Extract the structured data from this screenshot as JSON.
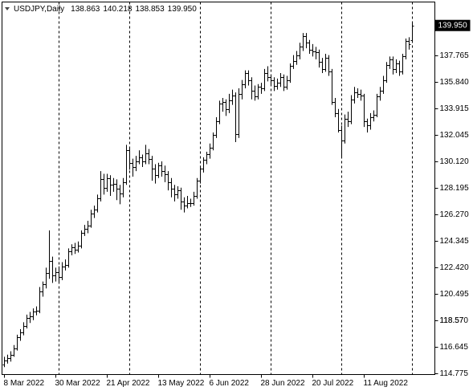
{
  "chart_data": {
    "type": "ohlc",
    "info": {
      "symbol": "USDJPY,Daily",
      "open": "138.863",
      "high": "140.218",
      "low": "138.853",
      "close": "139.950"
    },
    "current_price": {
      "value": 139.95,
      "label": "139.950"
    },
    "ylim": [
      114.66,
      141.65
    ],
    "yticks": [
      114.775,
      116.645,
      118.57,
      {
        "value": 118.57,
        "label": "118.570"
      },
      120.495,
      {
        "value": 122.42,
        "label": "122.420"
      },
      124.345,
      {
        "value": 126.27,
        "label": "126.270"
      },
      128.195,
      {
        "value": 130.12,
        "label": "130.120"
      },
      132.045,
      133.915,
      {
        "value": 135.84,
        "label": "135.840"
      },
      137.765
    ],
    "color": "#000000",
    "categories": [
      "8 Mar 2022",
      null,
      null,
      null,
      null,
      null,
      null,
      null,
      null,
      null,
      null,
      null,
      null,
      null,
      null,
      null,
      "30 Mar 2022",
      null,
      null,
      null,
      null,
      null,
      null,
      null,
      null,
      null,
      null,
      null,
      null,
      null,
      null,
      null,
      "21 Apr 2022",
      null,
      null,
      null,
      null,
      null,
      null,
      null,
      null,
      null,
      null,
      null,
      null,
      null,
      null,
      null,
      "13 May 2022",
      null,
      null,
      null,
      null,
      null,
      null,
      null,
      null,
      null,
      null,
      null,
      null,
      null,
      null,
      null,
      "6 Jun 2022",
      null,
      null,
      null,
      null,
      null,
      null,
      null,
      null,
      null,
      null,
      null,
      null,
      null,
      null,
      null,
      "28 Jun 2022",
      null,
      null,
      null,
      null,
      null,
      null,
      null,
      null,
      null,
      null,
      null,
      null,
      null,
      null,
      null,
      "20 Jul 2022",
      null,
      null,
      null,
      null,
      null,
      null,
      null,
      null,
      null,
      null,
      null,
      null,
      null,
      null,
      null,
      "11 Aug 2022",
      null,
      null,
      null,
      null,
      null,
      null,
      null,
      null,
      null,
      null,
      null,
      null,
      null,
      null,
      null
    ],
    "ohlc": [
      [
        115.4,
        115.95,
        115.2,
        115.7
      ],
      [
        115.7,
        116.1,
        115.45,
        115.85
      ],
      [
        115.85,
        116.35,
        115.6,
        116.1
      ],
      [
        116.1,
        116.8,
        115.95,
        116.55
      ],
      [
        116.55,
        117.55,
        116.4,
        117.35
      ],
      [
        117.35,
        117.95,
        117.1,
        117.7
      ],
      [
        117.7,
        118.45,
        117.5,
        118.2
      ],
      [
        118.2,
        119.0,
        118.0,
        118.75
      ],
      [
        118.75,
        119.2,
        118.4,
        118.9
      ],
      [
        118.9,
        119.45,
        118.6,
        119.25
      ],
      [
        119.25,
        119.6,
        118.95,
        119.3
      ],
      [
        119.3,
        121.0,
        119.1,
        120.7
      ],
      [
        120.7,
        121.4,
        120.3,
        121.2
      ],
      [
        121.2,
        122.4,
        120.9,
        122.0
      ],
      [
        122.0,
        125.1,
        121.6,
        122.9
      ],
      [
        122.9,
        123.2,
        121.3,
        121.85
      ],
      [
        121.85,
        122.4,
        121.4,
        122.05
      ],
      [
        122.05,
        122.5,
        121.3,
        121.7
      ],
      [
        121.7,
        122.8,
        121.5,
        122.5
      ],
      [
        122.5,
        123.0,
        122.2,
        122.6
      ],
      [
        122.6,
        123.8,
        122.4,
        123.6
      ],
      [
        123.6,
        124.1,
        123.3,
        123.9
      ],
      [
        123.9,
        124.2,
        123.4,
        123.7
      ],
      [
        123.7,
        124.3,
        123.5,
        124.0
      ],
      [
        124.0,
        125.1,
        123.8,
        124.9
      ],
      [
        124.9,
        125.5,
        124.7,
        125.2
      ],
      [
        125.2,
        125.8,
        124.9,
        125.45
      ],
      [
        125.45,
        126.6,
        125.3,
        126.3
      ],
      [
        126.3,
        126.9,
        126.0,
        126.6
      ],
      [
        126.6,
        127.7,
        126.4,
        127.4
      ],
      [
        127.4,
        129.4,
        127.2,
        128.8
      ],
      [
        128.8,
        129.2,
        127.7,
        128.2
      ],
      [
        128.2,
        129.2,
        127.9,
        128.9
      ],
      [
        128.9,
        129.1,
        127.6,
        128.4
      ],
      [
        128.4,
        128.9,
        127.9,
        128.5
      ],
      [
        128.5,
        128.8,
        127.3,
        128.1
      ],
      [
        128.1,
        128.4,
        127.0,
        127.8
      ],
      [
        127.8,
        128.9,
        127.5,
        128.6
      ],
      [
        128.6,
        131.3,
        128.4,
        130.9
      ],
      [
        130.9,
        131.1,
        129.5,
        130.0
      ],
      [
        130.0,
        130.3,
        129.0,
        129.7
      ],
      [
        129.7,
        130.5,
        129.4,
        130.1
      ],
      [
        130.1,
        130.9,
        129.9,
        130.4
      ],
      [
        130.4,
        130.6,
        129.7,
        130.1
      ],
      [
        130.1,
        131.3,
        129.9,
        130.7
      ],
      [
        130.7,
        131.0,
        129.9,
        130.3
      ],
      [
        130.3,
        130.5,
        128.7,
        129.6
      ],
      [
        129.6,
        129.9,
        128.5,
        129.1
      ],
      [
        129.1,
        130.0,
        128.9,
        129.8
      ],
      [
        129.8,
        130.1,
        129.0,
        129.4
      ],
      [
        129.4,
        129.8,
        128.6,
        129.2
      ],
      [
        129.2,
        129.4,
        128.0,
        128.6
      ],
      [
        128.6,
        128.9,
        127.5,
        128.1
      ],
      [
        128.1,
        128.4,
        127.2,
        127.7
      ],
      [
        127.7,
        128.3,
        127.4,
        128.0
      ],
      [
        128.0,
        128.2,
        126.6,
        127.2
      ],
      [
        127.2,
        127.5,
        126.4,
        126.9
      ],
      [
        126.9,
        127.6,
        126.7,
        127.1
      ],
      [
        127.1,
        127.4,
        126.8,
        127.1
      ],
      [
        127.1,
        127.9,
        126.9,
        127.6
      ],
      [
        127.6,
        128.9,
        127.4,
        128.7
      ],
      [
        128.7,
        129.8,
        128.5,
        129.6
      ],
      [
        129.6,
        130.4,
        129.3,
        130.2
      ],
      [
        130.2,
        130.8,
        129.9,
        130.6
      ],
      [
        130.6,
        131.4,
        130.3,
        131.1
      ],
      [
        131.1,
        132.2,
        130.9,
        132.0
      ],
      [
        132.0,
        133.3,
        131.8,
        133.0
      ],
      [
        133.0,
        134.5,
        132.8,
        134.3
      ],
      [
        134.3,
        134.7,
        133.7,
        134.4
      ],
      [
        134.4,
        134.6,
        133.4,
        133.9
      ],
      [
        133.9,
        135.0,
        133.6,
        134.5
      ],
      [
        134.5,
        135.3,
        134.2,
        134.9
      ],
      [
        134.9,
        135.1,
        131.5,
        132.1
      ],
      [
        132.1,
        135.4,
        131.8,
        135.0
      ],
      [
        135.0,
        136.0,
        134.6,
        135.7
      ],
      [
        135.7,
        136.7,
        135.4,
        136.5
      ],
      [
        136.5,
        136.7,
        135.6,
        136.0
      ],
      [
        136.0,
        136.2,
        134.6,
        135.2
      ],
      [
        135.2,
        135.6,
        134.5,
        134.8
      ],
      [
        134.8,
        135.7,
        134.6,
        135.5
      ],
      [
        135.5,
        135.8,
        135.0,
        135.4
      ],
      [
        135.4,
        136.8,
        135.2,
        136.5
      ],
      [
        136.5,
        137.0,
        135.9,
        136.2
      ],
      [
        136.2,
        136.4,
        135.6,
        136.0
      ],
      [
        136.0,
        136.2,
        135.2,
        135.6
      ],
      [
        135.6,
        136.1,
        135.3,
        135.8
      ],
      [
        135.8,
        136.5,
        135.5,
        136.2
      ],
      [
        136.2,
        136.4,
        135.2,
        135.5
      ],
      [
        135.5,
        136.3,
        135.3,
        136.0
      ],
      [
        136.0,
        137.2,
        135.8,
        137.0
      ],
      [
        137.0,
        137.8,
        136.8,
        137.4
      ],
      [
        137.4,
        138.1,
        137.1,
        137.8
      ],
      [
        137.8,
        138.7,
        137.5,
        138.4
      ],
      [
        138.4,
        139.4,
        138.1,
        139.2
      ],
      [
        139.2,
        139.4,
        138.3,
        138.7
      ],
      [
        138.7,
        138.9,
        137.9,
        138.2
      ],
      [
        138.2,
        138.6,
        137.7,
        138.1
      ],
      [
        138.1,
        138.4,
        137.5,
        138.0
      ],
      [
        138.0,
        138.2,
        136.9,
        137.3
      ],
      [
        137.3,
        137.6,
        136.5,
        136.8
      ],
      [
        136.8,
        137.9,
        136.6,
        137.6
      ],
      [
        137.6,
        137.8,
        136.3,
        136.6
      ],
      [
        136.6,
        136.8,
        134.2,
        134.4
      ],
      [
        134.4,
        134.7,
        133.3,
        133.6
      ],
      [
        133.6,
        133.9,
        132.2,
        132.4
      ],
      [
        132.4,
        132.7,
        130.4,
        131.6
      ],
      [
        131.6,
        133.5,
        131.4,
        133.2
      ],
      [
        133.2,
        133.7,
        132.6,
        133.0
      ],
      [
        133.0,
        134.9,
        132.8,
        134.6
      ],
      [
        134.6,
        135.5,
        134.3,
        135.1
      ],
      [
        135.1,
        135.4,
        134.7,
        135.0
      ],
      [
        135.0,
        135.3,
        134.5,
        134.9
      ],
      [
        134.9,
        135.0,
        132.6,
        133.0
      ],
      [
        133.0,
        133.2,
        132.2,
        132.7
      ],
      [
        132.7,
        133.6,
        132.4,
        133.3
      ],
      [
        133.3,
        133.8,
        133.0,
        133.5
      ],
      [
        133.5,
        135.0,
        133.3,
        134.8
      ],
      [
        134.8,
        135.5,
        134.5,
        135.2
      ],
      [
        135.2,
        136.3,
        135.0,
        136.0
      ],
      [
        136.0,
        137.3,
        135.8,
        137.1
      ],
      [
        137.1,
        137.7,
        136.8,
        137.5
      ],
      [
        137.5,
        137.7,
        136.4,
        136.8
      ],
      [
        136.8,
        137.5,
        136.5,
        137.2
      ],
      [
        137.2,
        137.4,
        136.3,
        136.6
      ],
      [
        136.6,
        137.9,
        136.4,
        137.7
      ],
      [
        137.7,
        139.0,
        137.5,
        138.8
      ],
      [
        138.8,
        139.1,
        138.2,
        138.6
      ],
      [
        138.863,
        140.218,
        138.853,
        139.95
      ]
    ]
  }
}
